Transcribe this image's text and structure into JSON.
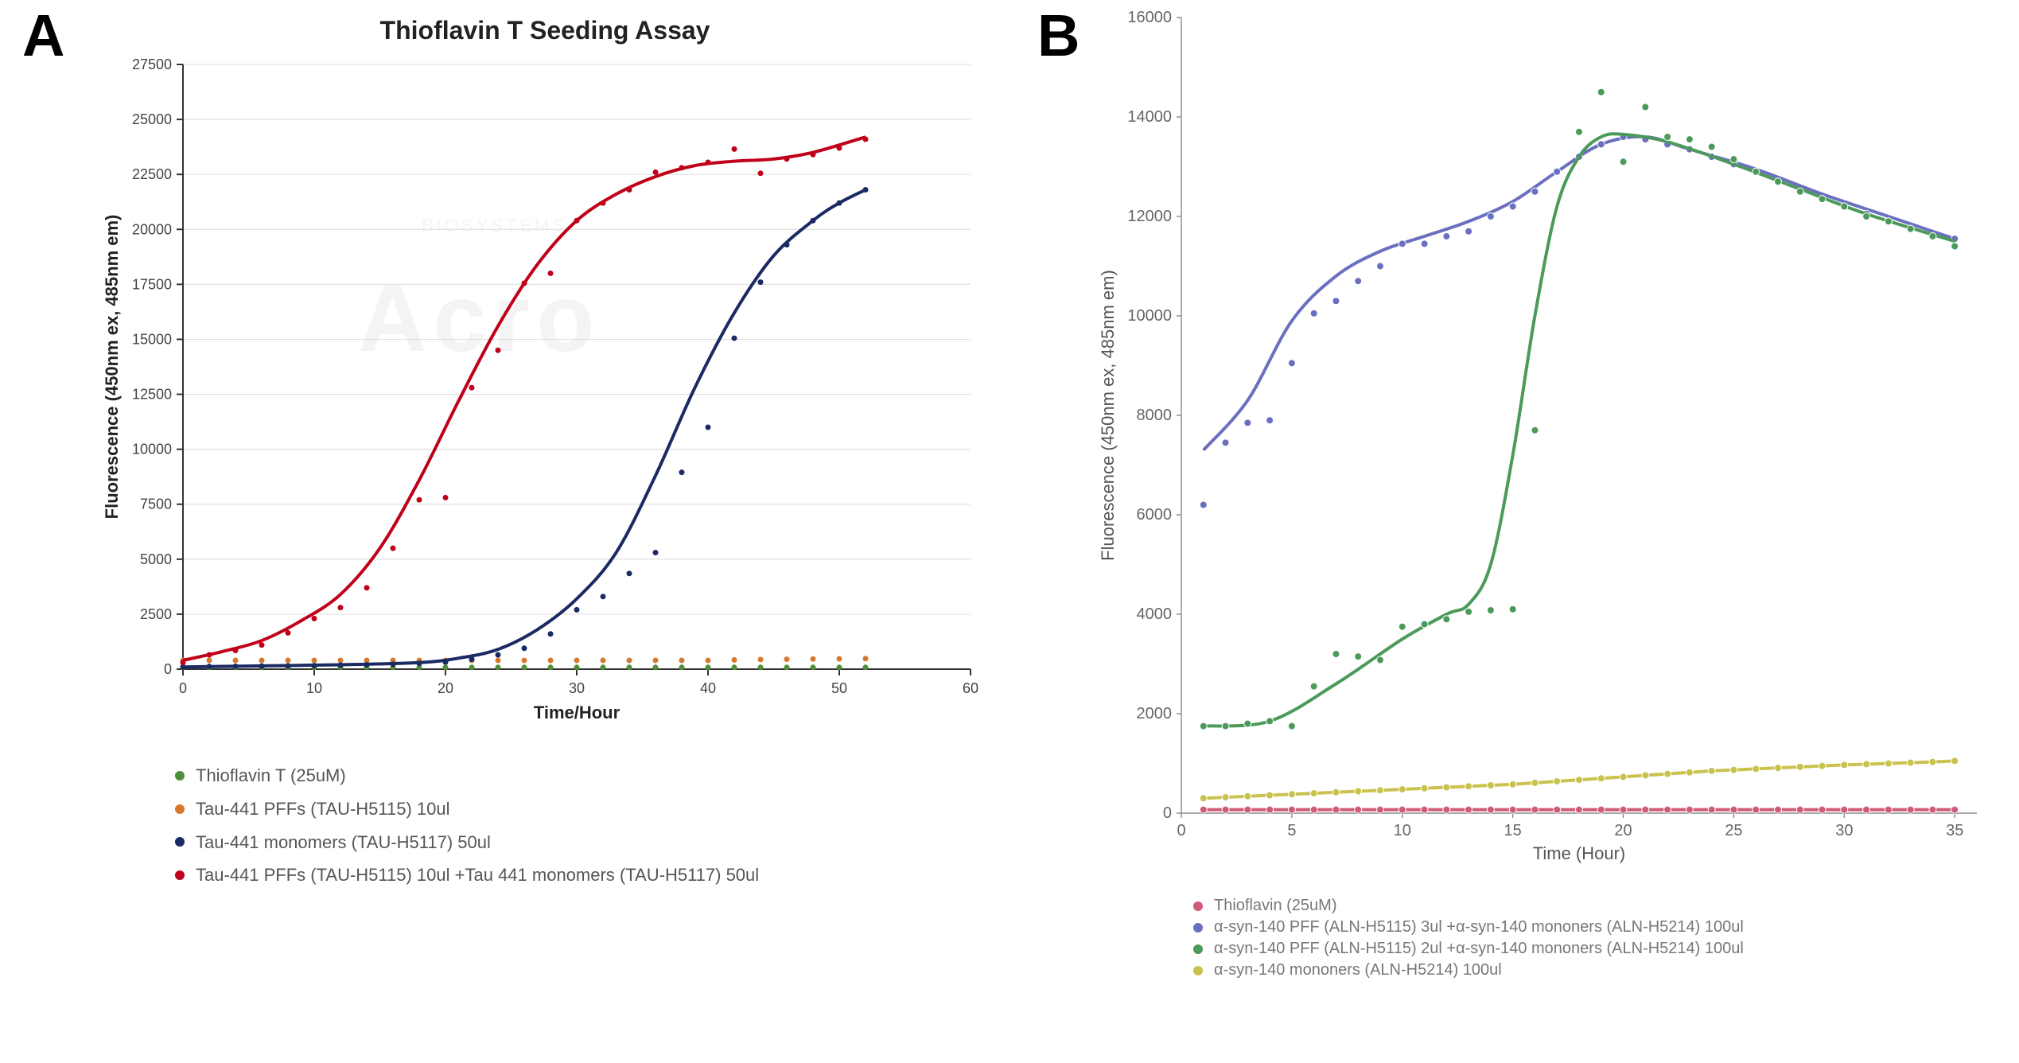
{
  "panel_labels": {
    "A": "A",
    "B": "B"
  },
  "chartA": {
    "type": "scatter_line",
    "title": "Thioflavin T Seeding Assay",
    "title_fontsize": 32,
    "xlabel": "Time/Hour",
    "ylabel": "Fluorescence (450nm ex, 485nm em)",
    "label_fontsize": 22,
    "xlim": [
      0,
      60
    ],
    "ylim": [
      0,
      27500
    ],
    "xtick_step": 10,
    "yticks": [
      0,
      2500,
      5000,
      7500,
      10000,
      12500,
      15000,
      17500,
      20000,
      22500,
      25000,
      27500
    ],
    "background_color": "#ffffff",
    "grid_color": "#dcdcdc",
    "axis_color": "#333333",
    "marker_radius": 3.5,
    "line_width": 4,
    "watermark_main": "Acro",
    "watermark_sub": "BIOSYSTEMS",
    "series": [
      {
        "key": "thtA",
        "label": "Thioflavin T (25uM)",
        "color": "#4f8f3a",
        "draw_line": false,
        "x": [
          0,
          2,
          4,
          6,
          8,
          10,
          12,
          14,
          16,
          18,
          20,
          22,
          24,
          26,
          28,
          30,
          32,
          34,
          36,
          38,
          40,
          42,
          44,
          46,
          48,
          50,
          52
        ],
        "y": [
          80,
          80,
          80,
          80,
          80,
          80,
          80,
          80,
          80,
          80,
          80,
          80,
          80,
          80,
          80,
          80,
          80,
          80,
          80,
          80,
          80,
          80,
          80,
          80,
          80,
          80,
          80
        ]
      },
      {
        "key": "pffA",
        "label": "Tau-441 PFFs (TAU-H5115) 10ul",
        "color": "#d6792f",
        "draw_line": false,
        "x": [
          0,
          2,
          4,
          6,
          8,
          10,
          12,
          14,
          16,
          18,
          20,
          22,
          24,
          26,
          28,
          30,
          32,
          34,
          36,
          38,
          40,
          42,
          44,
          46,
          48,
          50,
          52
        ],
        "y": [
          400,
          400,
          400,
          400,
          400,
          400,
          400,
          400,
          400,
          400,
          400,
          400,
          400,
          400,
          400,
          400,
          400,
          400,
          400,
          400,
          400,
          420,
          440,
          450,
          460,
          470,
          480
        ]
      },
      {
        "key": "monoA",
        "label": "Tau-441 monomers (TAU-H5117) 50ul",
        "color": "#1b2a63",
        "draw_line": true,
        "x": [
          0,
          2,
          4,
          6,
          8,
          10,
          12,
          14,
          16,
          18,
          20,
          22,
          24,
          26,
          28,
          30,
          32,
          34,
          36,
          38,
          40,
          42,
          44,
          46,
          48,
          50,
          52
        ],
        "y": [
          100,
          120,
          130,
          140,
          150,
          160,
          180,
          200,
          220,
          260,
          320,
          450,
          650,
          950,
          1600,
          2700,
          3300,
          4350,
          5300,
          8950,
          11000,
          15050,
          17600,
          19300,
          20400,
          21200,
          21800
        ],
        "curve": [
          [
            0,
            100
          ],
          [
            6,
            150
          ],
          [
            12,
            200
          ],
          [
            18,
            300
          ],
          [
            21,
            500
          ],
          [
            24,
            900
          ],
          [
            27,
            1800
          ],
          [
            30,
            3200
          ],
          [
            33,
            5300
          ],
          [
            36,
            8800
          ],
          [
            39,
            12800
          ],
          [
            42,
            16200
          ],
          [
            45,
            18800
          ],
          [
            48,
            20400
          ],
          [
            50,
            21200
          ],
          [
            52,
            21800
          ]
        ]
      },
      {
        "key": "seededA",
        "label": "Tau-441 PFFs (TAU-H5115) 10ul +Tau 441 monomers (TAU-H5117) 50ul",
        "color": "#c00018",
        "draw_line": true,
        "x": [
          0,
          2,
          4,
          6,
          8,
          10,
          12,
          14,
          16,
          18,
          20,
          22,
          24,
          26,
          28,
          30,
          32,
          34,
          36,
          38,
          40,
          42,
          44,
          46,
          48,
          50,
          52
        ],
        "y": [
          300,
          650,
          850,
          1100,
          1650,
          2300,
          2800,
          3700,
          5500,
          7700,
          7800,
          12800,
          14500,
          17550,
          18000,
          20400,
          21200,
          21800,
          22600,
          22800,
          23050,
          23650,
          22550,
          23200,
          23400,
          23700,
          24100
        ],
        "curve": [
          [
            0,
            400
          ],
          [
            3,
            800
          ],
          [
            6,
            1300
          ],
          [
            9,
            2200
          ],
          [
            12,
            3400
          ],
          [
            15,
            5500
          ],
          [
            18,
            8600
          ],
          [
            21,
            12200
          ],
          [
            24,
            15600
          ],
          [
            27,
            18400
          ],
          [
            30,
            20400
          ],
          [
            33,
            21600
          ],
          [
            36,
            22400
          ],
          [
            39,
            22900
          ],
          [
            42,
            23100
          ],
          [
            45,
            23200
          ],
          [
            48,
            23500
          ],
          [
            52,
            24200
          ]
        ]
      }
    ],
    "legend": [
      {
        "color": "#4f8f3a",
        "text": "Thioflavin T (25uM)"
      },
      {
        "color": "#d6792f",
        "text": "Tau-441 PFFs (TAU-H5115) 10ul"
      },
      {
        "color": "#1b2a63",
        "text": "Tau-441 monomers (TAU-H5117) 50ul"
      },
      {
        "color": "#c00018",
        "text": "Tau-441 PFFs (TAU-H5115) 10ul +Tau 441 monomers (TAU-H5117) 50ul"
      }
    ]
  },
  "chartB": {
    "type": "scatter_line",
    "title": "",
    "xlabel": "Time (Hour)",
    "ylabel": "Fluorescence (450nm ex, 485nm em)",
    "label_fontsize": 22,
    "xlim": [
      0,
      36
    ],
    "ylim": [
      0,
      16000
    ],
    "xticks": [
      0,
      5,
      10,
      15,
      20,
      25,
      30,
      35
    ],
    "ytick_step": 2000,
    "background_color": "#ffffff",
    "grid_color": "#dcdcdc",
    "axis_color": "#888888",
    "marker_radius": 4.5,
    "marker_edge": "#ffffff",
    "line_width": 4,
    "series": [
      {
        "key": "thtB",
        "label": "Thioflavin (25uM)",
        "color": "#cf5a7a",
        "draw_line": true,
        "connect_points": true,
        "x": [
          1,
          2,
          3,
          4,
          5,
          6,
          7,
          8,
          9,
          10,
          11,
          12,
          13,
          14,
          15,
          16,
          17,
          18,
          19,
          20,
          21,
          22,
          23,
          24,
          25,
          26,
          27,
          28,
          29,
          30,
          31,
          32,
          33,
          34,
          35
        ],
        "y": [
          70,
          70,
          70,
          70,
          70,
          70,
          70,
          70,
          70,
          70,
          70,
          70,
          70,
          70,
          70,
          70,
          70,
          70,
          70,
          70,
          70,
          70,
          70,
          70,
          70,
          70,
          70,
          70,
          70,
          70,
          70,
          70,
          70,
          70,
          70
        ]
      },
      {
        "key": "asyn3",
        "label": "α-syn-140 PFF (ALN-H5115) 3ul +α-syn-140 mononers (ALN-H5214) 100ul",
        "color": "#6a6fc0",
        "draw_line": true,
        "x": [
          1,
          2,
          3,
          4,
          5,
          6,
          7,
          8,
          9,
          10,
          11,
          12,
          13,
          14,
          15,
          16,
          17,
          18,
          19,
          20,
          21,
          22,
          23,
          24,
          25,
          26,
          27,
          28,
          29,
          30,
          31,
          32,
          33,
          34,
          35
        ],
        "y": [
          6200,
          7450,
          7850,
          7900,
          9050,
          10050,
          10300,
          10700,
          11000,
          11450,
          11450,
          11600,
          11700,
          12000,
          12200,
          12500,
          12900,
          13200,
          13450,
          13600,
          13550,
          13450,
          13350,
          13200,
          13050,
          12900,
          12700,
          12500,
          12350,
          12200,
          12050,
          11900,
          11750,
          11600,
          11550
        ],
        "curve": [
          [
            1,
            7300
          ],
          [
            3,
            8300
          ],
          [
            5,
            9900
          ],
          [
            7,
            10800
          ],
          [
            9,
            11300
          ],
          [
            11,
            11600
          ],
          [
            13,
            11900
          ],
          [
            15,
            12300
          ],
          [
            17,
            12900
          ],
          [
            19,
            13450
          ],
          [
            21,
            13600
          ],
          [
            23,
            13350
          ],
          [
            26,
            12950
          ],
          [
            29,
            12450
          ],
          [
            32,
            12000
          ],
          [
            35,
            11550
          ]
        ]
      },
      {
        "key": "asyn2",
        "label": "α-syn-140 PFF (ALN-H5115) 2ul +α-syn-140 mononers (ALN-H5214) 100ul",
        "color": "#4c9a5a",
        "draw_line": true,
        "x": [
          1,
          2,
          3,
          4,
          5,
          6,
          7,
          8,
          9,
          10,
          11,
          12,
          13,
          14,
          15,
          16,
          18,
          19,
          20,
          21,
          22,
          23,
          24,
          25,
          26,
          27,
          28,
          29,
          30,
          31,
          32,
          33,
          34,
          35
        ],
        "y": [
          1750,
          1750,
          1800,
          1850,
          1750,
          2550,
          3200,
          3150,
          3080,
          3750,
          3800,
          3900,
          4050,
          4080,
          4100,
          7700,
          13700,
          14500,
          13100,
          14200,
          13600,
          13550,
          13400,
          13150,
          12900,
          12700,
          12500,
          12350,
          12200,
          12000,
          11900,
          11750,
          11600,
          11400
        ],
        "curve": [
          [
            1,
            1750
          ],
          [
            4,
            1850
          ],
          [
            7,
            2600
          ],
          [
            10,
            3500
          ],
          [
            12,
            4000
          ],
          [
            13,
            4200
          ],
          [
            14,
            5000
          ],
          [
            15,
            7200
          ],
          [
            16,
            10000
          ],
          [
            17,
            12200
          ],
          [
            18,
            13200
          ],
          [
            19,
            13600
          ],
          [
            20,
            13650
          ],
          [
            22,
            13500
          ],
          [
            25,
            13050
          ],
          [
            28,
            12550
          ],
          [
            31,
            12050
          ],
          [
            35,
            11500
          ]
        ]
      },
      {
        "key": "asynMono",
        "label": "α-syn-140 mononers (ALN-H5214) 100ul",
        "color": "#c9c24d",
        "draw_line": true,
        "connect_points": true,
        "x": [
          1,
          2,
          3,
          4,
          5,
          6,
          7,
          8,
          9,
          10,
          11,
          12,
          13,
          14,
          15,
          16,
          17,
          18,
          19,
          20,
          21,
          22,
          23,
          24,
          25,
          26,
          27,
          28,
          29,
          30,
          31,
          32,
          33,
          34,
          35
        ],
        "y": [
          300,
          320,
          340,
          360,
          380,
          400,
          420,
          440,
          460,
          480,
          500,
          520,
          540,
          560,
          580,
          610,
          640,
          670,
          700,
          730,
          760,
          790,
          820,
          850,
          870,
          890,
          910,
          930,
          950,
          970,
          985,
          1000,
          1015,
          1030,
          1050
        ]
      }
    ],
    "legend": [
      {
        "color": "#cf5a7a",
        "text": "Thioflavin (25uM)"
      },
      {
        "color": "#6a6fc0",
        "text": "α-syn-140 PFF (ALN-H5115) 3ul +α-syn-140 mononers (ALN-H5214) 100ul"
      },
      {
        "color": "#4c9a5a",
        "text": "α-syn-140 PFF (ALN-H5115) 2ul +α-syn-140 mononers (ALN-H5214) 100ul"
      },
      {
        "color": "#c9c24d",
        "text": "α-syn-140 mononers (ALN-H5214) 100ul"
      }
    ]
  }
}
